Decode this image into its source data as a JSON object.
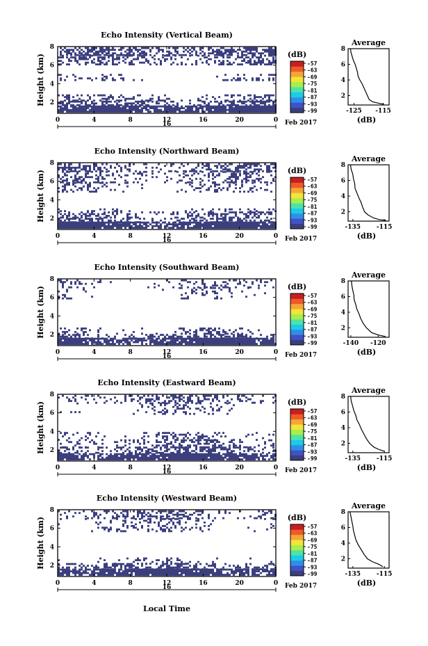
{
  "colors": {
    "echo": "#3b3f7e",
    "colorbar": [
      "#3b3f7e",
      "#3f52c8",
      "#2f8fe8",
      "#1ccbe6",
      "#4fe3a8",
      "#a9ef4a",
      "#f2e43a",
      "#f7a534",
      "#ee5a2a",
      "#c91e1e"
    ]
  },
  "x_label": "Local Time",
  "date_label": "Feb 2017",
  "y_label": "Height (km)",
  "chart_data": [
    {
      "type": "heatmap",
      "title": "Echo Intensity (Vertical Beam)",
      "x_ticks": [
        "0",
        "4",
        "8",
        "12",
        "16",
        "20",
        "0"
      ],
      "date_tick": "16",
      "y_ticks": [
        "2",
        "4",
        "6",
        "8"
      ],
      "xlim": [
        0,
        24
      ],
      "ylim": [
        0.8,
        8
      ],
      "colorbar": {
        "unit": "(dB)",
        "ticks": [
          "-57",
          "-63",
          "-69",
          "-75",
          "-81",
          "-87",
          "-93",
          "-99"
        ]
      },
      "profile": {
        "title": "Average",
        "xlabel": "(dB)",
        "x_ticks": [
          "-125",
          "-115"
        ],
        "xlim": [
          -127,
          -113
        ],
        "points": [
          [
            -126.2,
            8.0
          ],
          [
            -126.0,
            7.5
          ],
          [
            -125.6,
            7.0
          ],
          [
            -125.2,
            6.5
          ],
          [
            -124.6,
            6.0
          ],
          [
            -124.2,
            5.5
          ],
          [
            -123.8,
            5.0
          ],
          [
            -123.6,
            4.5
          ],
          [
            -123.0,
            4.0
          ],
          [
            -122.2,
            3.5
          ],
          [
            -121.6,
            3.0
          ],
          [
            -121.0,
            2.5
          ],
          [
            -120.4,
            2.0
          ],
          [
            -119.8,
            1.5
          ],
          [
            -118.6,
            1.2
          ],
          [
            -116.2,
            1.0
          ],
          [
            -114.8,
            0.9
          ]
        ]
      },
      "echo_bands": [
        [
          0.9,
          1.6,
          0.85
        ],
        [
          1.6,
          2.1,
          0.45
        ],
        [
          2.1,
          2.8,
          0.25
        ],
        [
          4.3,
          5.0,
          0.12
        ],
        [
          6.0,
          7.0,
          0.35
        ],
        [
          7.0,
          7.9,
          0.55
        ]
      ]
    },
    {
      "type": "heatmap",
      "title": "Echo Intensity (Northward Beam)",
      "x_ticks": [
        "0",
        "4",
        "8",
        "12",
        "16",
        "20",
        "0"
      ],
      "date_tick": "16",
      "y_ticks": [
        "2",
        "4",
        "6",
        "8"
      ],
      "xlim": [
        0,
        24
      ],
      "ylim": [
        0.8,
        8
      ],
      "colorbar": {
        "unit": "(dB)",
        "ticks": [
          "-57",
          "-63",
          "-69",
          "-75",
          "-81",
          "-87",
          "-93",
          "-99"
        ]
      },
      "profile": {
        "title": "Average",
        "xlabel": "(dB)",
        "x_ticks": [
          "-135",
          "-115"
        ],
        "xlim": [
          -138,
          -112
        ],
        "points": [
          [
            -136.5,
            8.0
          ],
          [
            -136.0,
            7.4
          ],
          [
            -135.0,
            6.8
          ],
          [
            -134.6,
            6.2
          ],
          [
            -133.8,
            5.6
          ],
          [
            -133.6,
            5.0
          ],
          [
            -132.4,
            4.4
          ],
          [
            -131.2,
            3.8
          ],
          [
            -129.8,
            3.2
          ],
          [
            -128.8,
            2.6
          ],
          [
            -127.6,
            2.0
          ],
          [
            -125.4,
            1.6
          ],
          [
            -121.8,
            1.2
          ],
          [
            -118.2,
            1.0
          ],
          [
            -114.0,
            0.9
          ]
        ]
      },
      "echo_bands": [
        [
          0.9,
          1.5,
          0.85
        ],
        [
          1.5,
          2.0,
          0.35
        ],
        [
          2.0,
          2.7,
          0.3
        ],
        [
          2.7,
          3.0,
          0.12
        ],
        [
          4.8,
          5.8,
          0.15
        ],
        [
          5.8,
          7.0,
          0.25
        ],
        [
          7.0,
          7.9,
          0.35
        ]
      ]
    },
    {
      "type": "heatmap",
      "title": "Echo Intensity (Southward Beam)",
      "x_ticks": [
        "0",
        "4",
        "8",
        "12",
        "16",
        "20",
        "0"
      ],
      "date_tick": "16",
      "y_ticks": [
        "2",
        "4",
        "6",
        "8"
      ],
      "xlim": [
        0,
        24
      ],
      "ylim": [
        0.8,
        8
      ],
      "colorbar": {
        "unit": "(dB)",
        "ticks": [
          "-57",
          "-63",
          "-69",
          "-75",
          "-81",
          "-87",
          "-93",
          "-99"
        ]
      },
      "profile": {
        "title": "Average",
        "xlabel": "(dB)",
        "x_ticks": [
          "-140",
          "-120"
        ],
        "xlim": [
          -142,
          -112
        ],
        "points": [
          [
            -139.6,
            8.0
          ],
          [
            -139.2,
            7.4
          ],
          [
            -138.6,
            6.8
          ],
          [
            -137.8,
            6.2
          ],
          [
            -137.6,
            5.6
          ],
          [
            -136.4,
            5.0
          ],
          [
            -135.6,
            4.4
          ],
          [
            -134.0,
            3.8
          ],
          [
            -132.8,
            3.2
          ],
          [
            -131.0,
            2.6
          ],
          [
            -128.6,
            2.0
          ],
          [
            -124.8,
            1.4
          ],
          [
            -120.2,
            1.1
          ],
          [
            -114.6,
            0.9
          ]
        ]
      },
      "echo_bands": [
        [
          0.9,
          1.5,
          0.85
        ],
        [
          1.5,
          2.0,
          0.35
        ],
        [
          2.0,
          2.7,
          0.2
        ],
        [
          5.8,
          7.0,
          0.1
        ],
        [
          7.0,
          7.9,
          0.18
        ]
      ]
    },
    {
      "type": "heatmap",
      "title": "Echo Intensity (Eastward Beam)",
      "x_ticks": [
        "0",
        "4",
        "8",
        "12",
        "16",
        "20",
        "0"
      ],
      "date_tick": "16",
      "y_ticks": [
        "2",
        "4",
        "6",
        "8"
      ],
      "xlim": [
        0,
        24
      ],
      "ylim": [
        0.8,
        8
      ],
      "colorbar": {
        "unit": "(dB)",
        "ticks": [
          "-57",
          "-63",
          "-69",
          "-75",
          "-81",
          "-87",
          "-93",
          "-99"
        ]
      },
      "profile": {
        "title": "Average",
        "xlabel": "(dB)",
        "x_ticks": [
          "-135",
          "-115"
        ],
        "xlim": [
          -138,
          -112
        ],
        "points": [
          [
            -136.4,
            8.0
          ],
          [
            -136.0,
            7.4
          ],
          [
            -135.2,
            6.8
          ],
          [
            -134.4,
            6.2
          ],
          [
            -133.2,
            5.6
          ],
          [
            -132.4,
            5.0
          ],
          [
            -130.8,
            4.4
          ],
          [
            -129.6,
            3.8
          ],
          [
            -128.0,
            3.2
          ],
          [
            -126.4,
            2.6
          ],
          [
            -124.4,
            2.0
          ],
          [
            -121.6,
            1.5
          ],
          [
            -118.4,
            1.2
          ],
          [
            -115.2,
            1.0
          ]
        ]
      },
      "echo_bands": [
        [
          0.9,
          1.6,
          0.85
        ],
        [
          1.6,
          2.2,
          0.4
        ],
        [
          2.2,
          3.0,
          0.3
        ],
        [
          3.0,
          3.8,
          0.2
        ],
        [
          5.8,
          7.0,
          0.12
        ],
        [
          7.0,
          7.9,
          0.3
        ]
      ]
    },
    {
      "type": "heatmap",
      "title": "Echo Intensity (Westward Beam)",
      "x_ticks": [
        "0",
        "4",
        "8",
        "12",
        "16",
        "20",
        "0"
      ],
      "date_tick": "16",
      "y_ticks": [
        "2",
        "4",
        "6",
        "8"
      ],
      "xlim": [
        0,
        24
      ],
      "ylim": [
        0.8,
        8
      ],
      "colorbar": {
        "unit": "(dB)",
        "ticks": [
          "-57",
          "-63",
          "-69",
          "-75",
          "-81",
          "-87",
          "-93",
          "-99"
        ]
      },
      "profile": {
        "title": "Average",
        "xlabel": "(dB)",
        "x_ticks": [
          "-135",
          "-115"
        ],
        "xlim": [
          -138,
          -112
        ],
        "points": [
          [
            -136.8,
            8.0
          ],
          [
            -136.2,
            7.4
          ],
          [
            -135.6,
            6.8
          ],
          [
            -135.0,
            6.2
          ],
          [
            -134.6,
            5.6
          ],
          [
            -133.8,
            5.0
          ],
          [
            -133.0,
            4.4
          ],
          [
            -131.6,
            3.8
          ],
          [
            -129.8,
            3.2
          ],
          [
            -128.0,
            2.6
          ],
          [
            -125.8,
            2.0
          ],
          [
            -122.4,
            1.6
          ],
          [
            -118.6,
            1.3
          ],
          [
            -116.0,
            1.0
          ]
        ]
      },
      "echo_bands": [
        [
          0.9,
          1.5,
          0.85
        ],
        [
          1.5,
          2.1,
          0.4
        ],
        [
          2.1,
          2.8,
          0.15
        ],
        [
          5.6,
          7.0,
          0.15
        ],
        [
          7.0,
          7.9,
          0.3
        ]
      ]
    }
  ]
}
